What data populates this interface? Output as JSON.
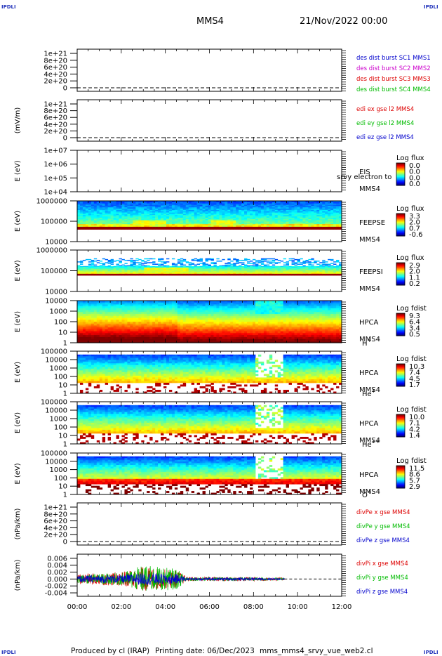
{
  "header": {
    "spacecraft": "MMS4",
    "date": "21/Nov/2022 00:00",
    "corner_left_top": "IPDLI",
    "corner_right_top": "IPDLI",
    "corner_left_bottom": "IPDLI",
    "corner_right_bottom": "IPDLI"
  },
  "footer": {
    "producer": "Produced by cl (IRAP)",
    "printing": "Printing date: 06/Dec/2023",
    "file": "mms_mms4_srvy_vue_web2.cl"
  },
  "colors": {
    "red": "#dd0000",
    "magenta": "#cc00cc",
    "green": "#00bb00",
    "blue": "#0000cc",
    "dashed": "#000000"
  },
  "chart_data": [
    {
      "type": "line",
      "id": "p1",
      "ylabel": "",
      "yticks": [
        "1e+21",
        "8e+20",
        "6e+20",
        "4e+20",
        "2e+20",
        "0"
      ],
      "ylim": [
        0,
        1e+21
      ],
      "legend": [
        {
          "text": "des dist burst SC1 MMS1",
          "color": "blue"
        },
        {
          "text": "des dist burst SC2 MMS2",
          "color": "magenta"
        },
        {
          "text": "des dist burst SC3 MMS3",
          "color": "red"
        },
        {
          "text": "des dist burst SC4 MMS4",
          "color": "green"
        }
      ],
      "series": []
    },
    {
      "type": "line",
      "id": "p2",
      "ylabel": "(mV/m)",
      "yticks": [
        "1e+21",
        "8e+20",
        "6e+20",
        "4e+20",
        "2e+20",
        "0"
      ],
      "ylim": [
        0,
        1e+21
      ],
      "legend": [
        {
          "text": "edi ex gse l2 MMS4",
          "color": "red"
        },
        {
          "text": "edi ey gse l2 MMS4",
          "color": "green"
        },
        {
          "text": "edi ez gse l2 MMS4",
          "color": "blue"
        }
      ],
      "series": []
    },
    {
      "type": "heatmap",
      "id": "p3",
      "ylabel": "E (eV)",
      "yticks": [
        "1e+07",
        "1e+06",
        "1e+05",
        "1e+04"
      ],
      "ylim": [
        10000,
        10000000
      ],
      "yscale": "log",
      "instrument": [
        "EIS",
        "MMS4"
      ],
      "overlay_text": "srvy electron to",
      "cbar_title": "Log flux",
      "cbar_ticks": [
        "0.0",
        "0.0",
        "0.0",
        "0.0"
      ],
      "band": null
    },
    {
      "type": "heatmap",
      "id": "p4",
      "ylabel": "E (eV)",
      "yticks": [
        "1000000",
        "100000",
        "10000"
      ],
      "ylim": [
        10000,
        1000000
      ],
      "yscale": "log",
      "instrument": [
        "FEEPSE",
        "MMS4"
      ],
      "cbar_title": "Log flux",
      "cbar_ticks": [
        "3.3",
        "2.0",
        "0.7",
        "-0.6"
      ],
      "band": {
        "e_min": 40000,
        "e_max": 1000000,
        "t_end_hours": 12.0,
        "style": "feeps_e"
      }
    },
    {
      "type": "heatmap",
      "id": "p5",
      "ylabel": "E (eV)",
      "yticks": [
        "1000000",
        "100000",
        "10000"
      ],
      "ylim": [
        10000,
        1000000
      ],
      "yscale": "log",
      "instrument": [
        "FEEPSI",
        "MMS4"
      ],
      "cbar_title": "Log flux",
      "cbar_ticks": [
        "2.9",
        "2.0",
        "1.1",
        "0.2"
      ],
      "band": {
        "e_min": 60000,
        "e_max": 400000,
        "t_end_hours": 12.0,
        "style": "feeps_i"
      }
    },
    {
      "type": "heatmap",
      "id": "p6",
      "ylabel": "E (eV)",
      "yticks": [
        "10000",
        "1000",
        "100",
        "10",
        "1"
      ],
      "ylim": [
        1,
        40000
      ],
      "yscale": "log",
      "instrument": [
        "HPCA",
        "MMS4"
      ],
      "species": "H",
      "species_sup": "+",
      "cbar_title": "Log fdist",
      "cbar_ticks": [
        "9.3",
        "6.4",
        "3.4",
        "0.5"
      ],
      "band": {
        "e_min": 1,
        "e_max": 40000,
        "t_end_hours": 12.0,
        "style": "hplus"
      }
    },
    {
      "type": "heatmap",
      "id": "p7",
      "ylabel": "E (eV)",
      "yticks": [
        "100000",
        "10000",
        "1000",
        "100",
        "10",
        "1"
      ],
      "ylim": [
        1,
        100000
      ],
      "yscale": "log",
      "instrument": [
        "HPCA",
        "MMS4"
      ],
      "species": "He",
      "species_sup": "+",
      "cbar_title": "Log fdist",
      "cbar_ticks": [
        "10.3",
        "7.4",
        "4.5",
        "1.7"
      ],
      "band": {
        "e_min": 1,
        "e_max": 40000,
        "t_end_hours": 12.0,
        "style": "heplus"
      }
    },
    {
      "type": "heatmap",
      "id": "p8",
      "ylabel": "E (eV)",
      "yticks": [
        "100000",
        "10000",
        "1000",
        "100",
        "10",
        "1"
      ],
      "ylim": [
        1,
        100000
      ],
      "yscale": "log",
      "instrument": [
        "HPCA",
        "MMS4"
      ],
      "species": "He",
      "species_sup": "++",
      "cbar_title": "Log fdist",
      "cbar_ticks": [
        "10.0",
        "7.1",
        "4.2",
        "1.4"
      ],
      "band": {
        "e_min": 1,
        "e_max": 40000,
        "t_end_hours": 12.0,
        "style": "hepp"
      }
    },
    {
      "type": "heatmap",
      "id": "p9",
      "ylabel": "E (eV)",
      "yticks": [
        "100000",
        "10000",
        "1000",
        "100",
        "10",
        "1"
      ],
      "ylim": [
        1,
        100000
      ],
      "yscale": "log",
      "instrument": [
        "HPCA",
        "MMS4"
      ],
      "species": "O",
      "species_sup": "+",
      "cbar_title": "Log fdist",
      "cbar_ticks": [
        "11.5",
        "8.6",
        "5.7",
        "2.9"
      ],
      "band": {
        "e_min": 1,
        "e_max": 40000,
        "t_end_hours": 12.0,
        "style": "oplus"
      }
    },
    {
      "type": "line",
      "id": "p10",
      "ylabel": "(nPa/km)",
      "yticks": [
        "1e+21",
        "8e+20",
        "6e+20",
        "4e+20",
        "2e+20",
        "0"
      ],
      "ylim": [
        0,
        1e+21
      ],
      "legend": [
        {
          "text": "divPe x gse MMS4",
          "color": "red"
        },
        {
          "text": "divPe y gse MMS4",
          "color": "green"
        },
        {
          "text": "divPe z gse MMS4",
          "color": "blue"
        }
      ],
      "series": []
    },
    {
      "type": "line",
      "id": "p11",
      "ylabel": "(nPa/km)",
      "yticks": [
        "0.006",
        "0.004",
        "0.002",
        "0.000",
        "-0.002",
        "-0.004"
      ],
      "ytick_values": [
        0.006,
        0.004,
        0.002,
        0.0,
        -0.002,
        -0.004
      ],
      "ylim": [
        -0.005,
        0.0072
      ],
      "legend": [
        {
          "text": "divPi x gse MMS4",
          "color": "red"
        },
        {
          "text": "divPi y gse MMS4",
          "color": "green"
        },
        {
          "text": "divPi z gse MMS4",
          "color": "blue"
        }
      ],
      "noise_series": [
        {
          "name": "divPi x gse MMS4",
          "color": "red",
          "t_start": 0.0,
          "t_end": 9.4,
          "amp_profile": [
            [
              0,
              0.0015
            ],
            [
              2,
              0.002
            ],
            [
              3,
              0.0035
            ],
            [
              4.5,
              0.0025
            ],
            [
              5.0,
              0.0006
            ],
            [
              8.0,
              0.0006
            ],
            [
              9.4,
              0.0004
            ]
          ]
        },
        {
          "name": "divPi y gse MMS4",
          "color": "green",
          "t_start": 0.0,
          "t_end": 9.4,
          "amp_profile": [
            [
              0,
              0.0012
            ],
            [
              2,
              0.0018
            ],
            [
              3,
              0.004
            ],
            [
              4.5,
              0.003
            ],
            [
              5.0,
              0.0005
            ],
            [
              8.0,
              0.0005
            ],
            [
              9.4,
              0.0003
            ]
          ]
        },
        {
          "name": "divPi z gse MMS4",
          "color": "blue",
          "t_start": 0.0,
          "t_end": 9.4,
          "amp_profile": [
            [
              0,
              0.001
            ],
            [
              2,
              0.0012
            ],
            [
              3,
              0.0018
            ],
            [
              4.5,
              0.0015
            ],
            [
              5.0,
              0.0004
            ],
            [
              8.0,
              0.0004
            ],
            [
              9.4,
              0.0002
            ]
          ]
        }
      ]
    }
  ],
  "xaxis": {
    "ticks": [
      "00:00",
      "02:00",
      "04:00",
      "06:00",
      "08:00",
      "10:00",
      "12:00"
    ],
    "xlim_hours": [
      0,
      12
    ]
  }
}
